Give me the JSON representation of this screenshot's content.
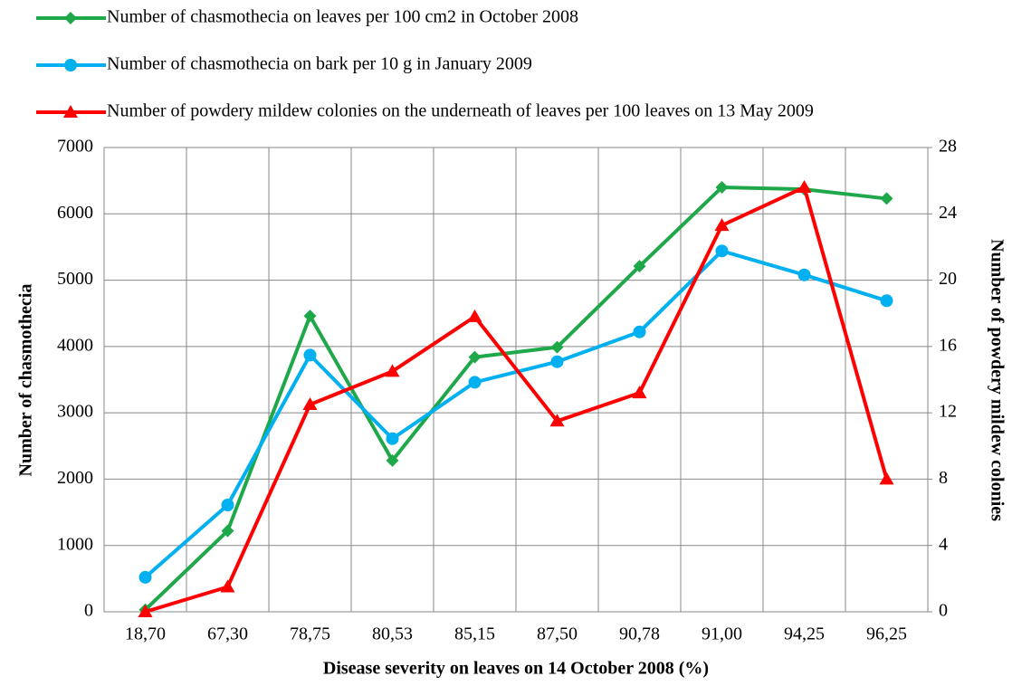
{
  "chart_data": {
    "type": "line",
    "x_label": "Disease severity on leaves on 14 October 2008 (%)",
    "y_label": "Number of chasmothecia",
    "y2_label": "Number of powdery mildew colonies",
    "categories": [
      "18,70",
      "67,30",
      "78,75",
      "80,53",
      "85,15",
      "87,50",
      "90,78",
      "91,00",
      "94,25",
      "96,25"
    ],
    "series": [
      {
        "name": "Number of chasmothecia on leaves per 100 cm2 in October 2008",
        "color": "#1fa84a",
        "marker": "diamond",
        "values": [
          30,
          1220,
          4460,
          2280,
          3840,
          3990,
          5210,
          6400,
          6370,
          6230
        ]
      },
      {
        "name": "Number of chasmothecia on bark per 10 g in January 2009",
        "color": "#00b0f0",
        "marker": "circle",
        "values": [
          520,
          1610,
          3870,
          2610,
          3460,
          3770,
          4220,
          5440,
          5080,
          4690
        ]
      },
      {
        "name": "Number of powdery mildew colonies on the underneath of leaves per 100 leaves on 13 May 2009",
        "color": "#ff0000",
        "marker": "triangle",
        "axis": "y2",
        "values": [
          0,
          1.5,
          12.5,
          14.5,
          17.8,
          11.5,
          13.2,
          23.3,
          25.6,
          8.0
        ]
      }
    ],
    "ylim": [
      0,
      7000
    ],
    "yticks": [
      0,
      1000,
      2000,
      3000,
      4000,
      5000,
      6000,
      7000
    ],
    "y2lim": [
      0,
      28
    ],
    "y2ticks": [
      0,
      4,
      8,
      12,
      16,
      20,
      24,
      28
    ],
    "grid": true,
    "legend": "top"
  }
}
